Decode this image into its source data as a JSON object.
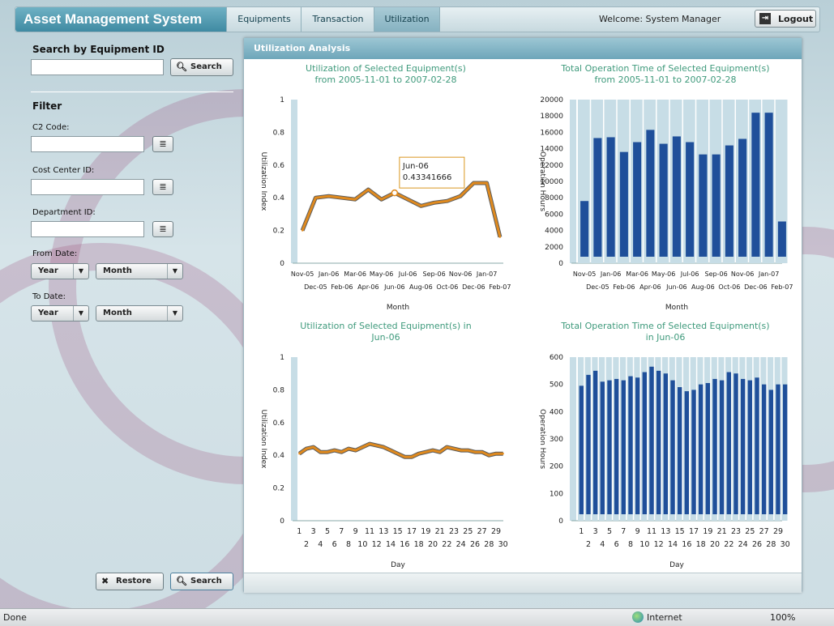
{
  "header": {
    "app_title": "Asset Management System",
    "tabs": [
      {
        "label": "Equipments"
      },
      {
        "label": "Transaction"
      },
      {
        "label": "Utilization"
      }
    ],
    "active_tab": "Utilization",
    "welcome": "Welcome: System Manager",
    "logout_label": "Logout"
  },
  "left_panel": {
    "search_title": "Search by Equipment ID",
    "search_button": "Search",
    "search_value": "",
    "filter_title": "Filter",
    "c2_label": "C2 Code:",
    "cost_center_label": "Cost Center ID:",
    "department_label": "Department ID:",
    "from_date_label": "From Date:",
    "to_date_label": "To Date:",
    "year_label": "Year",
    "month_label": "Month",
    "restore_button": "Restore",
    "search_button_bottom": "Search"
  },
  "main": {
    "title": "Utilization Analysis"
  },
  "chart_titles": {
    "c1_line1": "Utilization of Selected Equipment(s)",
    "c1_line2": "from 2005-11-01 to 2007-02-28",
    "c2_line1": "Total Operation Time of Selected Equipment(s)",
    "c2_line2": "from 2005-11-01 to 2007-02-28",
    "c3_line1": "Utilization of Selected Equipment(s) in",
    "c3_line2": "Jun-06",
    "c4_line1": "Total Operation Time of Selected Equipment(s)",
    "c4_line2": "in Jun-06"
  },
  "chart_data": [
    {
      "type": "line",
      "xlabel": "Month",
      "ylabel": "Utilization Index",
      "ylim": [
        0,
        1
      ],
      "yticks": [
        "0",
        "0.2",
        "0.4",
        "0.6",
        "0.8",
        "1"
      ],
      "categories": [
        "Nov-05",
        "Dec-05",
        "Jan-06",
        "Feb-06",
        "Mar-06",
        "Apr-06",
        "May-06",
        "Jun-06",
        "Jul-06",
        "Aug-06",
        "Sep-06",
        "Oct-06",
        "Nov-06",
        "Dec-06",
        "Jan-07",
        "Feb-07"
      ],
      "values": [
        0.2,
        0.4,
        0.41,
        0.4,
        0.39,
        0.45,
        0.39,
        0.43,
        0.39,
        0.35,
        0.37,
        0.38,
        0.41,
        0.49,
        0.49,
        0.16
      ],
      "tooltip": {
        "label": "Jun-06",
        "value": "0.43341666"
      },
      "color": "#e08a1e"
    },
    {
      "type": "bar",
      "xlabel": "Month",
      "ylabel": "Operation Hours",
      "ylim": [
        0,
        20000
      ],
      "yticks": [
        "0",
        "2000",
        "4000",
        "6000",
        "8000",
        "10000",
        "12000",
        "14000",
        "16000",
        "18000",
        "20000"
      ],
      "categories": [
        "Nov-05",
        "Dec-05",
        "Jan-06",
        "Feb-06",
        "Mar-06",
        "Apr-06",
        "May-06",
        "Jun-06",
        "Jul-06",
        "Aug-06",
        "Sep-06",
        "Oct-06",
        "Nov-06",
        "Dec-06",
        "Jan-07",
        "Feb-07"
      ],
      "values": [
        7600,
        15300,
        15400,
        13600,
        14800,
        16300,
        14600,
        15500,
        14800,
        13300,
        13300,
        14400,
        15200,
        18400,
        18400,
        5100
      ],
      "color": "#1f4f9a"
    },
    {
      "type": "line",
      "xlabel": "Day",
      "ylabel": "Utilization Index",
      "ylim": [
        0,
        1
      ],
      "yticks": [
        "0",
        "0.2",
        "0.4",
        "0.6",
        "0.8",
        "1"
      ],
      "categories": [
        "1",
        "2",
        "3",
        "4",
        "5",
        "6",
        "7",
        "8",
        "9",
        "10",
        "11",
        "12",
        "13",
        "14",
        "15",
        "16",
        "17",
        "18",
        "19",
        "20",
        "21",
        "22",
        "23",
        "24",
        "25",
        "26",
        "27",
        "28",
        "29",
        "30"
      ],
      "values": [
        0.41,
        0.44,
        0.45,
        0.42,
        0.42,
        0.43,
        0.42,
        0.44,
        0.43,
        0.45,
        0.47,
        0.46,
        0.45,
        0.43,
        0.41,
        0.39,
        0.39,
        0.41,
        0.42,
        0.43,
        0.42,
        0.45,
        0.44,
        0.43,
        0.43,
        0.42,
        0.42,
        0.4,
        0.41,
        0.41
      ],
      "color": "#e08a1e"
    },
    {
      "type": "bar",
      "xlabel": "Day",
      "ylabel": "Operation Hours",
      "ylim": [
        0,
        600
      ],
      "yticks": [
        "0",
        "100",
        "200",
        "300",
        "400",
        "500",
        "600"
      ],
      "categories": [
        "1",
        "2",
        "3",
        "4",
        "5",
        "6",
        "7",
        "8",
        "9",
        "10",
        "11",
        "12",
        "13",
        "14",
        "15",
        "16",
        "17",
        "18",
        "19",
        "20",
        "21",
        "22",
        "23",
        "24",
        "25",
        "26",
        "27",
        "28",
        "29",
        "30"
      ],
      "values": [
        495,
        535,
        550,
        510,
        515,
        520,
        515,
        530,
        525,
        545,
        565,
        550,
        540,
        515,
        490,
        475,
        480,
        500,
        505,
        520,
        515,
        545,
        540,
        520,
        515,
        525,
        500,
        480,
        500,
        500
      ],
      "color": "#1f4f9a"
    }
  ],
  "statusbar": {
    "status": "Done",
    "zone": "Internet",
    "zoom": "100%"
  }
}
